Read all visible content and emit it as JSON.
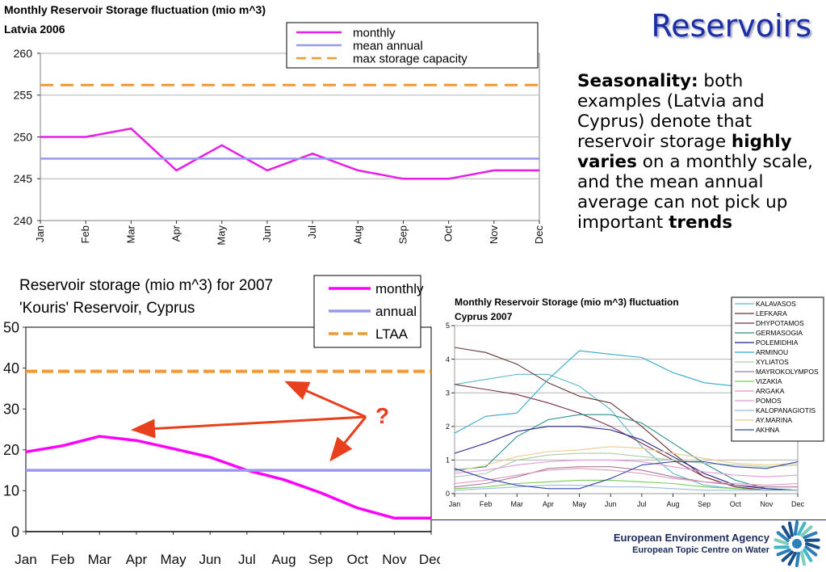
{
  "slide": {
    "title": "Reservoirs",
    "text": {
      "seasonality_label": "Seasonality:",
      "part1": " both examples (Latvia and Cyprus) denote that reservoir storage ",
      "highly_varies": "highly varies",
      "part2": " on a monthly scale, and the mean annual average can not pick up important ",
      "trends": "trends"
    },
    "annotation_mark": "?",
    "annotation_color": "#e8401c",
    "footer": {
      "agency": "European Environment Agency",
      "centre": "European Topic Centre on Water"
    }
  },
  "chart_data": [
    {
      "id": "latvia",
      "type": "line",
      "title": "Monthly Reservoir Storage fluctuation (mio m^3)",
      "subtitle": "Latvia  2006",
      "categories": [
        "Jan",
        "Feb",
        "Mar",
        "Apr",
        "May",
        "Jun",
        "Jul",
        "Aug",
        "Sep",
        "Oct",
        "Nov",
        "Dec"
      ],
      "ylim": [
        240,
        260
      ],
      "yticks": [
        240,
        245,
        250,
        255,
        260
      ],
      "grid": true,
      "legend_position": "top-right",
      "series": [
        {
          "name": "monthly",
          "color": "#e61ee6",
          "style": "solid",
          "values": [
            250,
            250,
            251,
            246,
            249,
            246,
            248,
            246,
            245,
            245,
            246,
            246
          ]
        },
        {
          "name": "mean annual",
          "color": "#9999ee",
          "style": "solid",
          "values": [
            247.4,
            247.4,
            247.4,
            247.4,
            247.4,
            247.4,
            247.4,
            247.4,
            247.4,
            247.4,
            247.4,
            247.4
          ]
        },
        {
          "name": "max storage capacity",
          "color": "#ee9933",
          "style": "dashed",
          "values": [
            256.2,
            256.2,
            256.2,
            256.2,
            256.2,
            256.2,
            256.2,
            256.2,
            256.2,
            256.2,
            256.2,
            256.2
          ]
        }
      ]
    },
    {
      "id": "kouris",
      "type": "line",
      "title": "Reservoir storage (mio m^3) for 2007",
      "subtitle": "'Kouris' Reservoir, Cyprus",
      "categories": [
        "Jan",
        "Feb",
        "Mar",
        "Apr",
        "May",
        "Jun",
        "Jul",
        "Aug",
        "Sep",
        "Oct",
        "Nov",
        "Dec"
      ],
      "ylim": [
        0,
        50
      ],
      "yticks": [
        0,
        10,
        20,
        30,
        40,
        50
      ],
      "grid": false,
      "legend_position": "top-right",
      "series": [
        {
          "name": "monthly",
          "color": "#ff00ff",
          "style": "solid",
          "values": [
            19.5,
            21,
            23.3,
            22.3,
            20.3,
            18.2,
            15,
            12.7,
            9.5,
            5.8,
            3.3,
            3.3
          ]
        },
        {
          "name": "annual",
          "color": "#9999ee",
          "style": "solid",
          "values": [
            15,
            15,
            15,
            15,
            15,
            15,
            15,
            15,
            15,
            15,
            15,
            15
          ]
        },
        {
          "name": "LTAA",
          "color": "#ee9933",
          "style": "dashed",
          "values": [
            39.2,
            39.2,
            39.2,
            39.2,
            39.2,
            39.2,
            39.2,
            39.2,
            39.2,
            39.2,
            39.2,
            39.2
          ]
        }
      ]
    },
    {
      "id": "cyprus",
      "type": "line",
      "title": "Monthly Reservoir Storage (mio m^3) fluctuation",
      "subtitle": "Cyprus 2007",
      "categories": [
        "Jan",
        "Feb",
        "Mar",
        "Apr",
        "May",
        "Jun",
        "Jul",
        "Aug",
        "Sep",
        "Oct",
        "Nov",
        "Dec"
      ],
      "ylim": [
        0,
        5
      ],
      "yticks": [
        0,
        1,
        2,
        3,
        4,
        5
      ],
      "grid": true,
      "legend_position": "top-right",
      "series": [
        {
          "name": "KALAVASOS",
          "color": "#5fb7c7",
          "values": [
            3.25,
            3.4,
            3.55,
            3.55,
            3.2,
            2.5,
            1.4,
            0.6,
            0.25,
            0.15,
            0.1,
            0.1
          ]
        },
        {
          "name": "LEFKARA",
          "color": "#663333",
          "values": [
            4.35,
            4.2,
            3.85,
            3.3,
            2.9,
            2.7,
            2.0,
            1.2,
            0.5,
            0.2,
            0.1,
            0.1
          ]
        },
        {
          "name": "DHYPOTAMOS",
          "color": "#7a2e4a",
          "values": [
            3.25,
            3.1,
            2.95,
            2.7,
            2.4,
            2.0,
            1.5,
            1.0,
            0.5,
            0.2,
            0.1,
            0.1
          ]
        },
        {
          "name": "GERMASOGIA",
          "color": "#2e8c8c",
          "values": [
            0.7,
            0.8,
            1.7,
            2.2,
            2.35,
            2.35,
            2.1,
            1.5,
            0.9,
            0.4,
            0.15,
            0.1
          ]
        },
        {
          "name": "POLEMIDHIA",
          "color": "#222288",
          "values": [
            1.2,
            1.5,
            1.85,
            2.0,
            2.0,
            1.9,
            1.6,
            1.1,
            0.6,
            0.25,
            0.15,
            0.1
          ]
        },
        {
          "name": "ARMINOU",
          "color": "#33aacc",
          "values": [
            1.8,
            2.3,
            2.4,
            3.4,
            4.25,
            4.15,
            4.05,
            3.6,
            3.3,
            3.2,
            3.2,
            3.2
          ]
        },
        {
          "name": "XYLIATOS",
          "color": "#aaccaa",
          "values": [
            0.5,
            0.6,
            1.0,
            1.15,
            1.2,
            1.2,
            1.1,
            1.0,
            0.9,
            0.85,
            0.8,
            0.85
          ]
        },
        {
          "name": "MAYROKOLYMPOS",
          "color": "#aa7799",
          "values": [
            0.2,
            0.3,
            0.5,
            0.75,
            0.8,
            0.8,
            0.7,
            0.5,
            0.35,
            0.25,
            0.2,
            0.2
          ]
        },
        {
          "name": "VIZAKIA",
          "color": "#77cc55",
          "values": [
            0.15,
            0.2,
            0.3,
            0.35,
            0.4,
            0.4,
            0.35,
            0.3,
            0.2,
            0.15,
            0.1,
            0.1
          ]
        },
        {
          "name": "ARGAKA",
          "color": "#dd99bb",
          "values": [
            0.3,
            0.4,
            0.55,
            0.7,
            0.75,
            0.7,
            0.6,
            0.45,
            0.35,
            0.3,
            0.25,
            0.3
          ]
        },
        {
          "name": "POMOS",
          "color": "#dd99dd",
          "values": [
            0.6,
            0.7,
            0.85,
            0.95,
            1.0,
            1.0,
            0.95,
            0.8,
            0.65,
            0.55,
            0.5,
            0.55
          ]
        },
        {
          "name": "KALOPANAGIOTIS",
          "color": "#99bbdd",
          "values": [
            0.1,
            0.15,
            0.2,
            0.25,
            0.25,
            0.2,
            0.2,
            0.15,
            0.1,
            0.1,
            0.1,
            0.1
          ]
        },
        {
          "name": "AY.MARINA",
          "color": "#eecc88",
          "values": [
            0.65,
            0.85,
            1.1,
            1.25,
            1.3,
            1.4,
            1.35,
            1.2,
            1.05,
            0.9,
            0.85,
            0.9
          ]
        },
        {
          "name": "AKHNA",
          "color": "#3344aa",
          "values": [
            0.75,
            0.45,
            0.25,
            0.15,
            0.15,
            0.45,
            0.85,
            0.95,
            0.95,
            0.8,
            0.75,
            0.95
          ]
        }
      ]
    }
  ]
}
